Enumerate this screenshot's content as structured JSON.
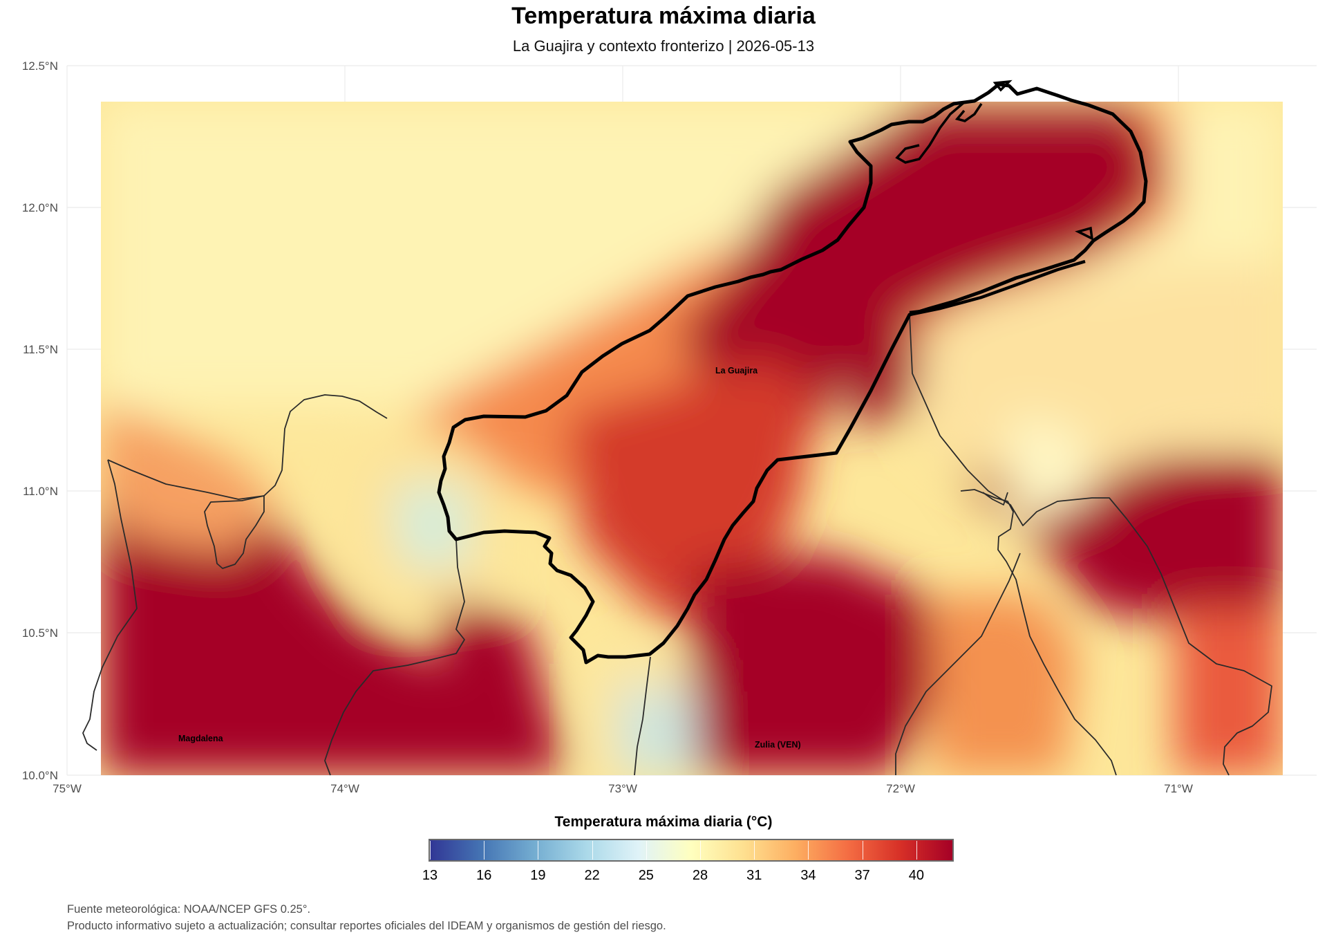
{
  "title": "Temperatura máxima diaria",
  "subtitle": "La Guajira y contexto fronterizo | 2026-05-13",
  "axes": {
    "y_labels": [
      "12.5°N",
      "12.0°N",
      "11.5°N",
      "11.0°N",
      "10.5°N",
      "10.0°N"
    ],
    "x_labels": [
      "75°W",
      "74°W",
      "73°W",
      "72°W",
      "71°W"
    ]
  },
  "regions": {
    "guajira": "La Guajira",
    "magdalena": "Magdalena",
    "zulia": "Zulia (VEN)"
  },
  "legend": {
    "title": "Temperatura máxima diaria (°C)",
    "ticks": [
      "13",
      "16",
      "19",
      "22",
      "25",
      "28",
      "31",
      "34",
      "37",
      "40"
    ],
    "min": 13,
    "max": 42,
    "colors": [
      "#313695",
      "#4575b4",
      "#74add1",
      "#abd9e9",
      "#e0f3f8",
      "#ffffbf",
      "#fee090",
      "#fdae61",
      "#f46d43",
      "#d73027",
      "#a50026"
    ]
  },
  "captions": [
    "Fuente meteorológica: NOAA/NCEP GFS 0.25°.",
    "Producto informativo sujeto a actualización; consultar reportes oficiales del IDEAM y organismos de gestión del riesgo."
  ]
}
